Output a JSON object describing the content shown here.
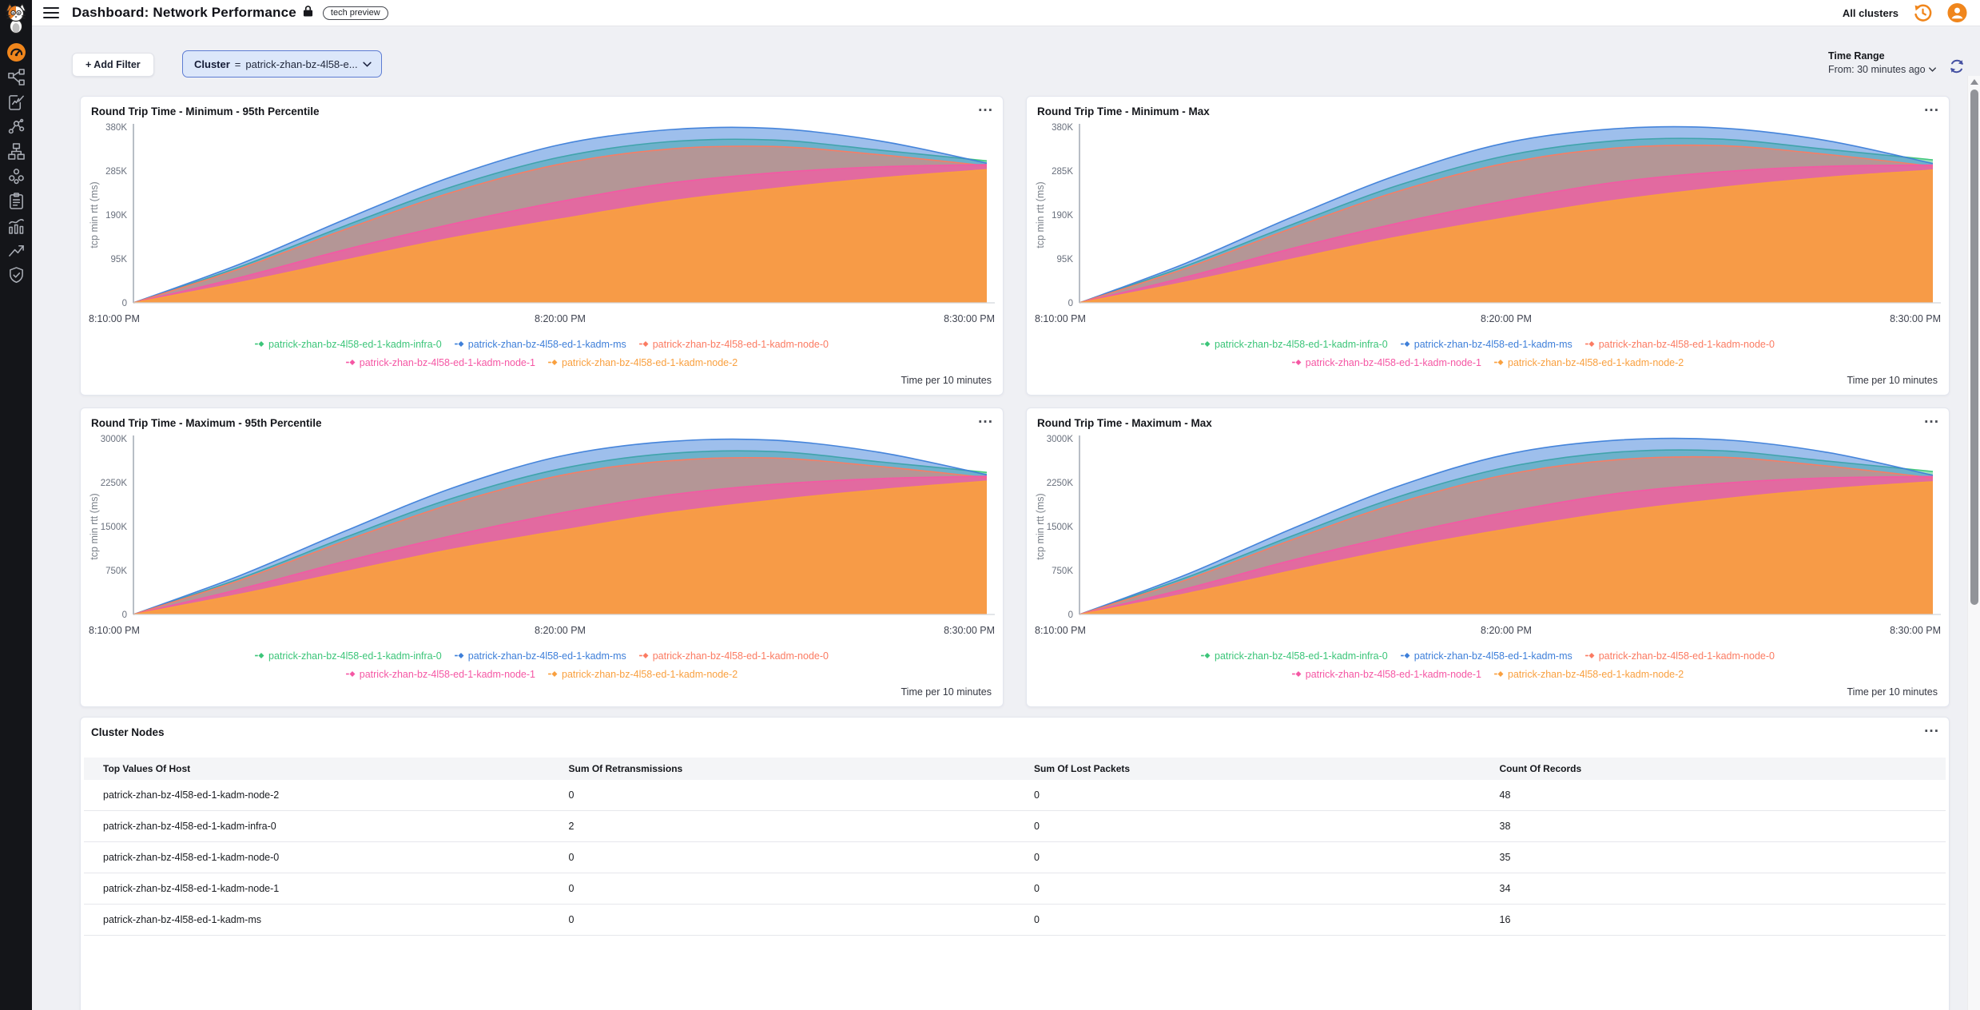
{
  "sidebar": {
    "icons": [
      "logo-cat",
      "dashboard-gauge-active",
      "topology",
      "report-edit",
      "molecule",
      "sitemap",
      "cluster-group",
      "clipboard",
      "bar-chart",
      "trend-up",
      "shield-check"
    ]
  },
  "header": {
    "title": "Dashboard: Network Performance",
    "badge": "tech preview",
    "cluster_scope": "All clusters"
  },
  "filter_bar": {
    "add_filter_label": "+ Add Filter",
    "filter_pill": {
      "field": "Cluster",
      "operator": "=",
      "value": "patrick-zhan-bz-4l58-e..."
    }
  },
  "time_range": {
    "title": "Time Range",
    "from": "From: 30 minutes ago"
  },
  "chart_data": [
    {
      "type": "area",
      "title": "Round Trip Time - Minimum - 95th Percentile",
      "ylabel": "tcp min rtt (ms)",
      "values_unit": "thousands (K)",
      "ymax": 380,
      "yticks": {
        "values": [
          0,
          95,
          190,
          285,
          380
        ],
        "labels": [
          "0",
          "95K",
          "190K",
          "285K",
          "380K"
        ]
      },
      "xticks": [
        "8:10:00 PM",
        "8:20:00 PM",
        "8:30:00 PM"
      ],
      "footer": "Time per 10 minutes",
      "legend_position": "bottom",
      "series": [
        {
          "name": "patrick-zhan-bz-4l58-ed-1-kadm-infra-0",
          "color": "#3CC579",
          "opacity": 0.5,
          "values": [
            0,
            78,
            168,
            252,
            315,
            348,
            352,
            330,
            307
          ]
        },
        {
          "name": "patrick-zhan-bz-4l58-ed-1-kadm-ms",
          "color": "#3E7FD9",
          "opacity": 0.5,
          "values": [
            0,
            84,
            182,
            274,
            342,
            374,
            377,
            350,
            302
          ]
        },
        {
          "name": "patrick-zhan-bz-4l58-ed-1-kadm-node-0",
          "color": "#FB7B62",
          "opacity": 0.5,
          "values": [
            0,
            74,
            160,
            240,
            300,
            332,
            338,
            320,
            296
          ]
        },
        {
          "name": "patrick-zhan-bz-4l58-ed-1-kadm-node-1",
          "color": "#F557A4",
          "opacity": 0.7,
          "values": [
            0,
            55,
            116,
            171,
            219,
            258,
            281,
            294,
            299
          ]
        },
        {
          "name": "patrick-zhan-bz-4l58-ed-1-kadm-node-2",
          "color": "#F9A03F",
          "opacity": 0.92,
          "values": [
            0,
            44,
            93,
            141,
            181,
            219,
            247,
            270,
            288
          ]
        }
      ]
    },
    {
      "type": "area",
      "title": "Round Trip Time - Minimum - Max",
      "ylabel": "tcp min rtt (ms)",
      "values_unit": "thousands (K)",
      "ymax": 380,
      "yticks": {
        "values": [
          0,
          95,
          190,
          285,
          380
        ],
        "labels": [
          "0",
          "95K",
          "190K",
          "285K",
          "380K"
        ]
      },
      "xticks": [
        "8:10:00 PM",
        "8:20:00 PM",
        "8:30:00 PM"
      ],
      "footer": "Time per 10 minutes",
      "legend_position": "bottom",
      "series": [
        {
          "name": "patrick-zhan-bz-4l58-ed-1-kadm-infra-0",
          "color": "#3CC579",
          "opacity": 0.5,
          "values": [
            0,
            80,
            170,
            255,
            318,
            350,
            354,
            332,
            309
          ]
        },
        {
          "name": "patrick-zhan-bz-4l58-ed-1-kadm-ms",
          "color": "#3E7FD9",
          "opacity": 0.5,
          "values": [
            0,
            86,
            186,
            278,
            346,
            376,
            378,
            351,
            301
          ]
        },
        {
          "name": "patrick-zhan-bz-4l58-ed-1-kadm-node-0",
          "color": "#FB7B62",
          "opacity": 0.5,
          "values": [
            0,
            75,
            162,
            242,
            302,
            334,
            340,
            321,
            295
          ]
        },
        {
          "name": "patrick-zhan-bz-4l58-ed-1-kadm-node-1",
          "color": "#F557A4",
          "opacity": 0.7,
          "values": [
            0,
            56,
            118,
            173,
            221,
            260,
            283,
            295,
            298
          ]
        },
        {
          "name": "patrick-zhan-bz-4l58-ed-1-kadm-node-2",
          "color": "#F9A03F",
          "opacity": 0.92,
          "values": [
            0,
            45,
            95,
            143,
            184,
            221,
            249,
            271,
            287
          ]
        }
      ]
    },
    {
      "type": "area",
      "title": "Round Trip Time - Maximum - 95th Percentile",
      "ylabel": "tcp min rtt (ms)",
      "values_unit": "thousands (K)",
      "ymax": 3000,
      "yticks": {
        "values": [
          0,
          750,
          1500,
          2250,
          3000
        ],
        "labels": [
          "0",
          "750K",
          "1500K",
          "2250K",
          "3000K"
        ]
      },
      "xticks": [
        "8:10:00 PM",
        "8:20:00 PM",
        "8:30:00 PM"
      ],
      "footer": "Time per 10 minutes",
      "legend_position": "bottom",
      "series": [
        {
          "name": "patrick-zhan-bz-4l58-ed-1-kadm-infra-0",
          "color": "#3CC579",
          "opacity": 0.5,
          "values": [
            0,
            615,
            1325,
            1990,
            2485,
            2745,
            2780,
            2605,
            2425
          ]
        },
        {
          "name": "patrick-zhan-bz-4l58-ed-1-kadm-ms",
          "color": "#3E7FD9",
          "opacity": 0.5,
          "values": [
            0,
            665,
            1435,
            2165,
            2700,
            2950,
            2975,
            2765,
            2385
          ]
        },
        {
          "name": "patrick-zhan-bz-4l58-ed-1-kadm-node-0",
          "color": "#FB7B62",
          "opacity": 0.5,
          "values": [
            0,
            585,
            1265,
            1895,
            2370,
            2620,
            2670,
            2525,
            2335
          ]
        },
        {
          "name": "patrick-zhan-bz-4l58-ed-1-kadm-node-1",
          "color": "#F557A4",
          "opacity": 0.7,
          "values": [
            0,
            435,
            915,
            1350,
            1730,
            2035,
            2220,
            2320,
            2360
          ]
        },
        {
          "name": "patrick-zhan-bz-4l58-ed-1-kadm-node-2",
          "color": "#F9A03F",
          "opacity": 0.92,
          "values": [
            0,
            345,
            735,
            1115,
            1430,
            1730,
            1950,
            2130,
            2275
          ]
        }
      ]
    },
    {
      "type": "area",
      "title": "Round Trip Time - Maximum - Max",
      "ylabel": "tcp min rtt (ms)",
      "values_unit": "thousands (K)",
      "ymax": 3000,
      "yticks": {
        "values": [
          0,
          750,
          1500,
          2250,
          3000
        ],
        "labels": [
          "0",
          "750K",
          "1500K",
          "2250K",
          "3000K"
        ]
      },
      "xticks": [
        "8:10:00 PM",
        "8:20:00 PM",
        "8:30:00 PM"
      ],
      "footer": "Time per 10 minutes",
      "legend_position": "bottom",
      "series": [
        {
          "name": "patrick-zhan-bz-4l58-ed-1-kadm-infra-0",
          "color": "#3CC579",
          "opacity": 0.5,
          "values": [
            0,
            630,
            1345,
            2015,
            2510,
            2765,
            2795,
            2620,
            2440
          ]
        },
        {
          "name": "patrick-zhan-bz-4l58-ed-1-kadm-ms",
          "color": "#3E7FD9",
          "opacity": 0.5,
          "values": [
            0,
            680,
            1470,
            2195,
            2730,
            2970,
            2985,
            2770,
            2375
          ]
        },
        {
          "name": "patrick-zhan-bz-4l58-ed-1-kadm-node-0",
          "color": "#FB7B62",
          "opacity": 0.5,
          "values": [
            0,
            590,
            1280,
            1910,
            2385,
            2635,
            2685,
            2535,
            2330
          ]
        },
        {
          "name": "patrick-zhan-bz-4l58-ed-1-kadm-node-1",
          "color": "#F557A4",
          "opacity": 0.7,
          "values": [
            0,
            440,
            930,
            1365,
            1745,
            2055,
            2235,
            2330,
            2355
          ]
        },
        {
          "name": "patrick-zhan-bz-4l58-ed-1-kadm-node-2",
          "color": "#F9A03F",
          "opacity": 0.92,
          "values": [
            0,
            355,
            750,
            1130,
            1455,
            1745,
            1965,
            2140,
            2265
          ]
        }
      ]
    },
    {
      "type": "table",
      "title": "Cluster Nodes",
      "columns": [
        "Top Values Of Host",
        "Sum Of Retransmissions",
        "Sum Of Lost Packets",
        "Count Of Records"
      ],
      "rows": [
        [
          "patrick-zhan-bz-4l58-ed-1-kadm-node-2",
          "0",
          "0",
          "48"
        ],
        [
          "patrick-zhan-bz-4l58-ed-1-kadm-infra-0",
          "2",
          "0",
          "38"
        ],
        [
          "patrick-zhan-bz-4l58-ed-1-kadm-node-0",
          "0",
          "0",
          "35"
        ],
        [
          "patrick-zhan-bz-4l58-ed-1-kadm-node-1",
          "0",
          "0",
          "34"
        ],
        [
          "patrick-zhan-bz-4l58-ed-1-kadm-ms",
          "0",
          "0",
          "16"
        ]
      ]
    }
  ],
  "colors": {
    "accent_orange": "#F0861C",
    "pill_bg": "#DCE7FA",
    "pill_border": "#5D7CD3",
    "sidebar_bg": "#141519",
    "refresh_icon": "#4450A2"
  }
}
